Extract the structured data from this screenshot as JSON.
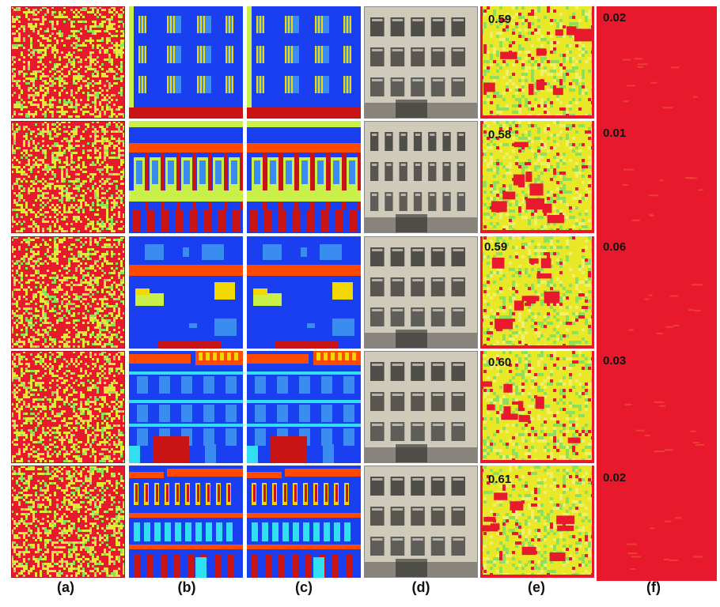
{
  "figure": {
    "panel_labels": [
      "(a)",
      "(b)",
      "(c)",
      "(d)",
      "(e)",
      "(f)"
    ],
    "rows": [
      {
        "score_e": "0.59",
        "score_f": "0.02"
      },
      {
        "score_e": "0.58",
        "score_f": "0.01"
      },
      {
        "score_e": "0.59",
        "score_f": "0.06"
      },
      {
        "score_e": "0.60",
        "score_f": "0.03"
      },
      {
        "score_e": "0.61",
        "score_f": "0.02"
      }
    ],
    "colors": {
      "noise_red": "#e8192c",
      "noise_yellow": "#e8e838",
      "noise_green": "#8ee05a",
      "label_blue": "#1a3ff0",
      "label_light_blue": "#3a8cf0",
      "label_yellow": "#f0d800",
      "label_lime": "#c8f048",
      "label_orange": "#ff4a00",
      "label_red": "#c81414",
      "label_cyan": "#30e0f0",
      "facade_beige": "#c8c0b0",
      "facade_dark": "#3a3835"
    }
  }
}
